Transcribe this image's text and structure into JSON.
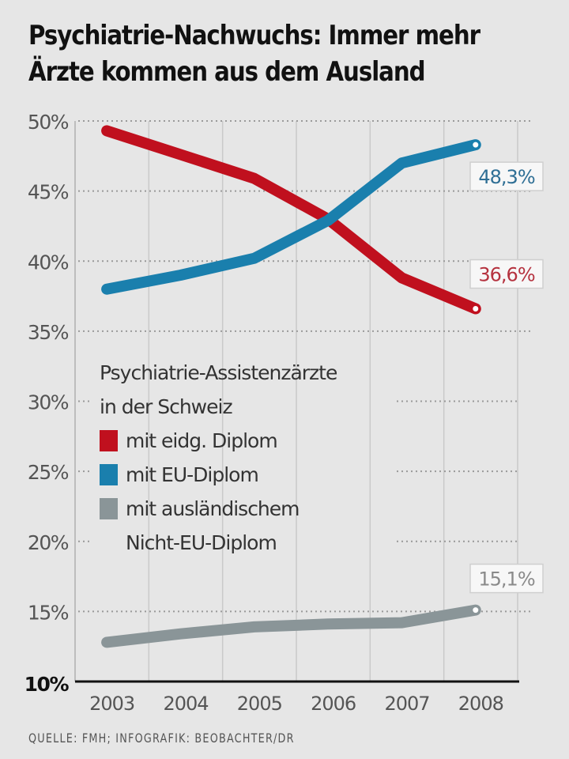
{
  "title_line1": "Psychiatrie-Nachwuchs: Immer mehr",
  "title_line2": "Ärzte kommen aus dem Ausland",
  "source": "QUELLE: FMH; INFOGRAFIK: BEOBACHTER/DR",
  "legend": {
    "heading_line1": "Psychiatrie-Assistenzärzte",
    "heading_line2": "in der Schweiz",
    "items": [
      {
        "label": "mit eidg. Diplom",
        "color": "#c0101e"
      },
      {
        "label": "mit EU-Diplom",
        "color": "#1a7fad"
      },
      {
        "label": "mit ausländischem",
        "color": "#8a9598"
      },
      {
        "label": "Nicht-EU-Diplom",
        "color": null
      }
    ]
  },
  "chart_data": {
    "type": "line",
    "title": "Psychiatrie-Nachwuchs: Immer mehr Ärzte kommen aus dem Ausland",
    "xlabel": "",
    "ylabel": "",
    "x": [
      "2003",
      "2004",
      "2005",
      "2006",
      "2007",
      "2008"
    ],
    "ylim": [
      10,
      50
    ],
    "yticks": [
      10,
      15,
      20,
      25,
      30,
      35,
      40,
      45,
      50
    ],
    "ytick_labels": [
      "10%",
      "15%",
      "20%",
      "25%",
      "30%",
      "35%",
      "40%",
      "45%",
      "50%"
    ],
    "grid": true,
    "legend_position": "center-left",
    "series": [
      {
        "name": "mit eidg. Diplom",
        "color": "#c0101e",
        "values": [
          49.3,
          47.6,
          45.9,
          43.0,
          38.8,
          36.6
        ],
        "end_label": "36,6%",
        "label_color": "#b5323f"
      },
      {
        "name": "mit EU-Diplom",
        "color": "#1a7fad",
        "values": [
          38.0,
          39.0,
          40.2,
          42.9,
          47.0,
          48.3
        ],
        "end_label": "48,3%",
        "label_color": "#2f6f95"
      },
      {
        "name": "mit ausländischem Nicht-EU-Diplom",
        "color": "#8a9598",
        "values": [
          12.8,
          13.4,
          13.9,
          14.1,
          14.2,
          15.1
        ],
        "end_label": "15,1%",
        "label_color": "#8a8a8a"
      }
    ]
  }
}
